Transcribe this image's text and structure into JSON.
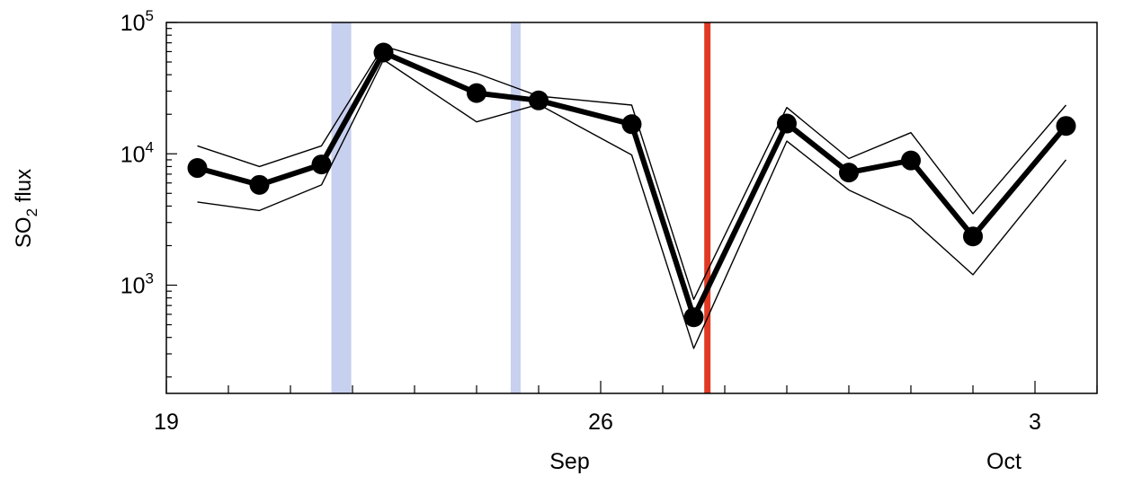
{
  "chart_data": {
    "type": "line",
    "title": "",
    "xlabel": "",
    "ylabel": {
      "main": "SO",
      "subscript": "2",
      "rest": " flux"
    },
    "y_scale": "log",
    "ylim": [
      150,
      100000
    ],
    "xlim": [
      "2019-09-19",
      "2019-10-04"
    ],
    "grid": false,
    "y_ticks": [
      {
        "value": 1000,
        "base": "10",
        "exp": "3"
      },
      {
        "value": 10000,
        "base": "10",
        "exp": "4"
      },
      {
        "value": 100000,
        "base": "10",
        "exp": "5"
      }
    ],
    "x_ticks": [
      {
        "date": "2019-09-19",
        "label": "19"
      },
      {
        "date": "2019-09-26",
        "label": "26"
      },
      {
        "date": "2019-10-03",
        "label": "3"
      }
    ],
    "month_labels": [
      {
        "date": "2019-09-25.5",
        "label": "Sep"
      },
      {
        "date": "2019-10-02.5",
        "label": "Oct"
      }
    ],
    "series": [
      {
        "role": "main",
        "x": [
          "2019-09-19.5",
          "2019-09-20.5",
          "2019-09-21.5",
          "2019-09-22.5",
          "2019-09-24",
          "2019-09-25",
          "2019-09-26.5",
          "2019-09-27.5",
          "2019-09-29",
          "2019-09-30",
          "2019-10-01",
          "2019-10-02",
          "2019-10-03.5"
        ],
        "y": [
          7800,
          5800,
          8300,
          59000,
          29000,
          25500,
          16800,
          570,
          17000,
          7200,
          8900,
          2350,
          16300
        ]
      },
      {
        "role": "upper",
        "x": [
          "2019-09-19.5",
          "2019-09-20.5",
          "2019-09-21.5",
          "2019-09-22.5",
          "2019-09-24",
          "2019-09-25",
          "2019-09-26.5",
          "2019-09-27.5",
          "2019-09-29",
          "2019-09-30",
          "2019-10-01",
          "2019-10-02",
          "2019-10-03.5"
        ],
        "y": [
          11500,
          8000,
          11500,
          66000,
          41000,
          27500,
          23500,
          780,
          22500,
          9200,
          14500,
          3500,
          23500
        ]
      },
      {
        "role": "lower",
        "x": [
          "2019-09-19.5",
          "2019-09-20.5",
          "2019-09-21.5",
          "2019-09-22.5",
          "2019-09-24",
          "2019-09-25",
          "2019-09-26.5",
          "2019-09-27.5",
          "2019-09-29",
          "2019-09-30",
          "2019-10-01",
          "2019-10-02",
          "2019-10-03.5"
        ],
        "y": [
          4300,
          3700,
          5800,
          52000,
          17500,
          23800,
          9800,
          330,
          12500,
          5300,
          3200,
          1200,
          9000
        ]
      }
    ],
    "shaded_periods": [
      {
        "start": "2019-09-21.66",
        "end": "2019-09-21.98",
        "color": "#c8d0f0"
      },
      {
        "start": "2019-09-24.55",
        "end": "2019-09-24.71",
        "color": "#c8d0f0"
      }
    ],
    "event_lines": [
      {
        "date": "2019-09-27.72",
        "color": "#e03a25"
      }
    ],
    "colors": {
      "main": "#000000",
      "envelope": "#000000",
      "axis": "#000000"
    }
  }
}
